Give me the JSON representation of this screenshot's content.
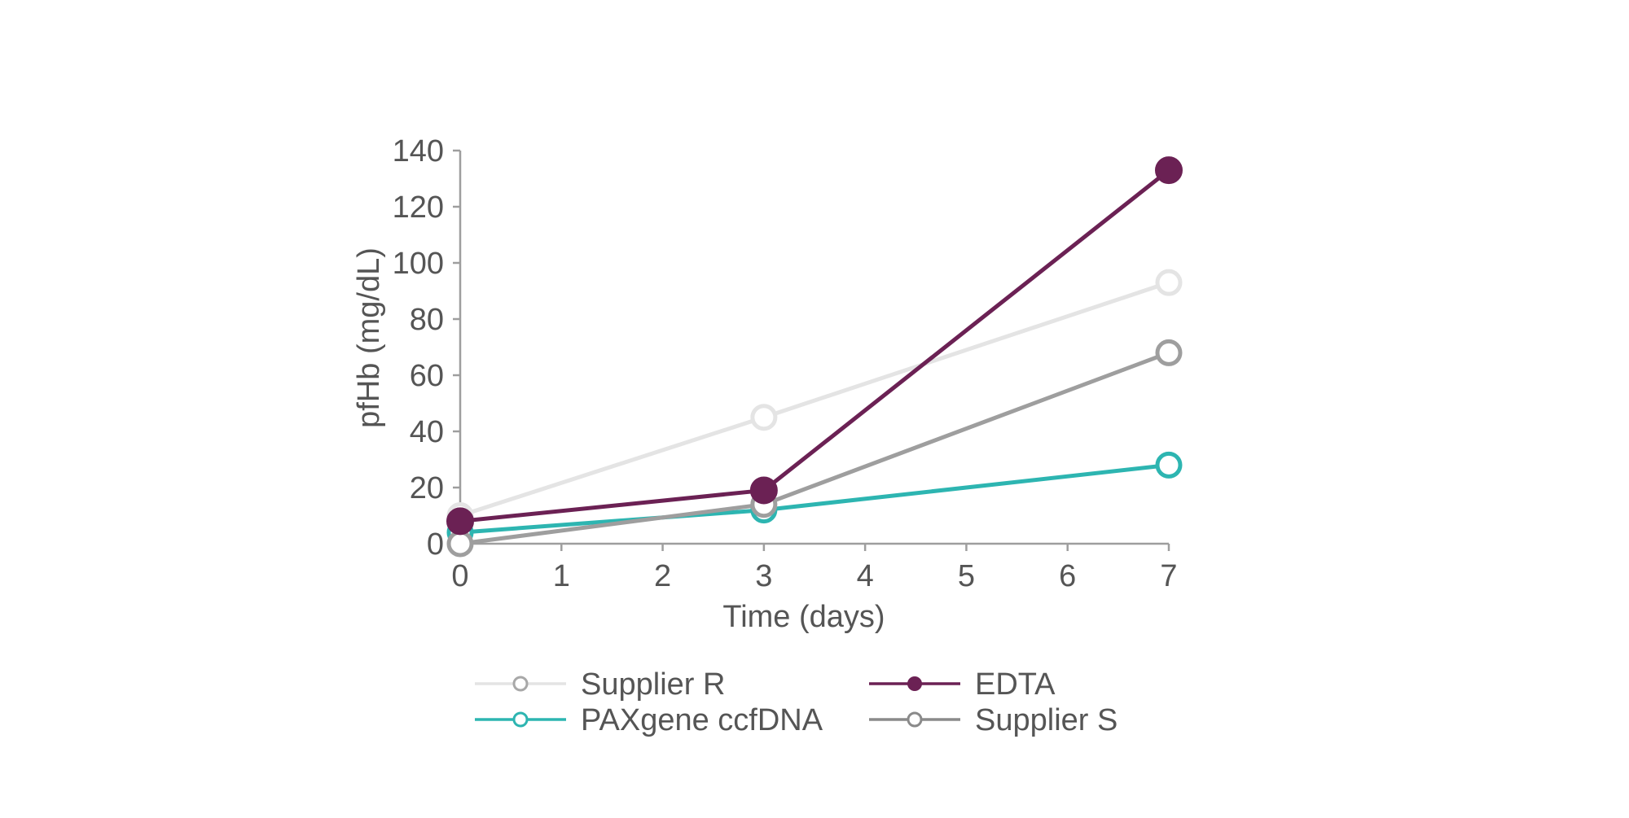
{
  "chart_data": {
    "type": "line",
    "xlabel": "Time (days)",
    "ylabel": "pfHb (mg/dL)",
    "xlim": [
      0,
      7
    ],
    "ylim": [
      0,
      140
    ],
    "x_ticks": [
      0,
      1,
      2,
      3,
      4,
      5,
      6,
      7
    ],
    "y_ticks": [
      0,
      20,
      40,
      60,
      80,
      100,
      120,
      140
    ],
    "grid": false,
    "legend_position": "bottom",
    "series": [
      {
        "name": "Supplier R",
        "x": [
          0,
          3,
          7
        ],
        "y": [
          10,
          45,
          93
        ],
        "color": "#e4e4e4",
        "marker": "open"
      },
      {
        "name": "EDTA",
        "x": [
          0,
          3,
          7
        ],
        "y": [
          8,
          19,
          133
        ],
        "color": "#6b2154",
        "marker": "filled"
      },
      {
        "name": "PAXgene ccfDNA",
        "x": [
          0,
          3,
          7
        ],
        "y": [
          4,
          12,
          28
        ],
        "color": "#2db5b1",
        "marker": "open"
      },
      {
        "name": "Supplier S",
        "x": [
          0,
          3,
          7
        ],
        "y": [
          0,
          14,
          68
        ],
        "color": "#9e9e9e",
        "marker": "open"
      }
    ],
    "draw_order": [
      0,
      2,
      3,
      1
    ]
  }
}
